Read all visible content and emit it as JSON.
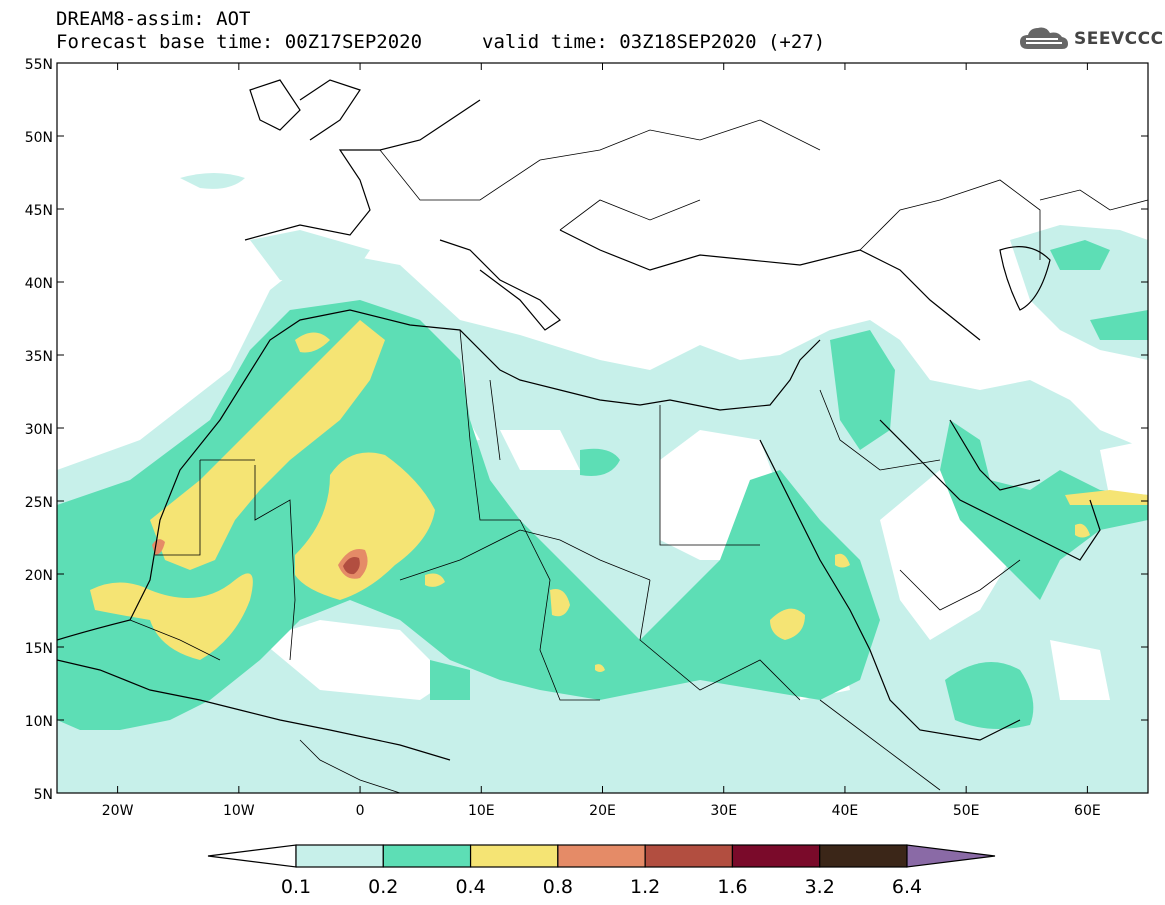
{
  "header": {
    "line1": "DREAM8-assim: AOT",
    "line2": "Forecast base time: 00Z17SEP2020",
    "line2b": "valid time: 03Z18SEP2020 (+27)"
  },
  "logo": {
    "text": "SEEVCCC",
    "icon": "cloud-icon"
  },
  "map": {
    "lat_labels": [
      "55N",
      "50N",
      "45N",
      "40N",
      "35N",
      "30N",
      "25N",
      "20N",
      "15N",
      "10N",
      "5N"
    ],
    "lon_labels": [
      "20W",
      "10W",
      "0",
      "10E",
      "20E",
      "30E",
      "40E",
      "50E",
      "60E"
    ]
  },
  "colorbar": {
    "labels": [
      "0.1",
      "0.2",
      "0.4",
      "0.8",
      "1.2",
      "1.6",
      "3.2",
      "6.4"
    ],
    "colors": [
      "#ffffff",
      "#c7f0ea",
      "#5ddeb5",
      "#f5e474",
      "#e58b67",
      "#b24e40",
      "#7a0a2a",
      "#3b2618",
      "#8a6aa6"
    ]
  }
}
